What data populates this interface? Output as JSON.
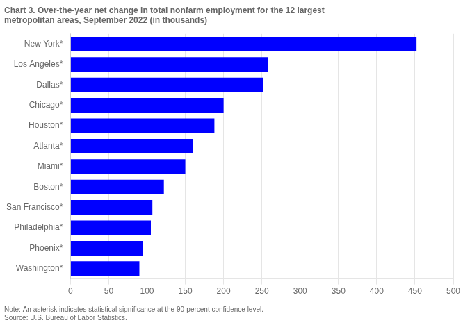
{
  "chart_data": {
    "type": "bar",
    "orientation": "horizontal",
    "title": "Chart 3. Over-the-year net change in total nonfarm employment for the 12 largest\nmetropolitan areas, September 2022 (in thousands)",
    "categories": [
      "Washington*",
      "Phoenix*",
      "Philadelphia*",
      "San Francisco*",
      "Boston*",
      "Miami*",
      "Atlanta*",
      "Houston*",
      "Chicago*",
      "Dallas*",
      "Los Angeles*",
      "New York*"
    ],
    "values": [
      90,
      95,
      105,
      107,
      122,
      150,
      160,
      188,
      200,
      252,
      258,
      452
    ],
    "color": "#0000ff",
    "xlim": [
      0,
      500
    ],
    "xticks": [
      0,
      50,
      100,
      150,
      200,
      250,
      300,
      350,
      400,
      450,
      500
    ],
    "grid": true,
    "annotations": [
      "Note: An asterisk indicates statistical significance at the 90-percent confidence level.",
      "Source: U.S. Bureau of Labor Statistics."
    ]
  }
}
